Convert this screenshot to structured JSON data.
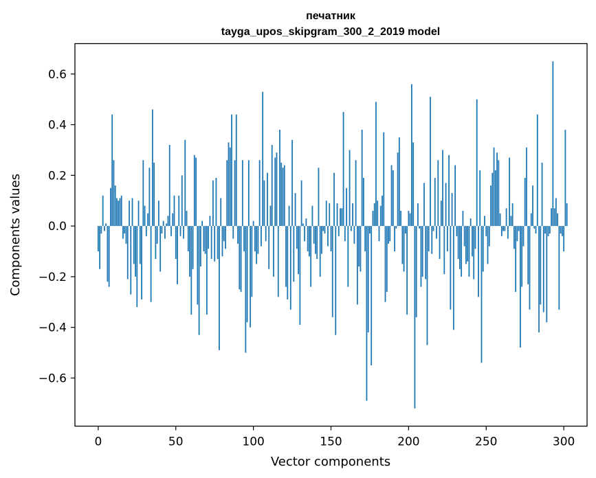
{
  "chart_data": {
    "type": "bar",
    "title": "печатник",
    "subtitle": "tayga_upos_skipgram_300_2_2019 model",
    "xlabel": "Vector components",
    "ylabel": "Components values",
    "xlim": [
      -15,
      315
    ],
    "ylim": [
      -0.79,
      0.72
    ],
    "xticks": [
      0,
      50,
      100,
      150,
      200,
      250,
      300
    ],
    "xtick_labels": [
      "0",
      "50",
      "100",
      "150",
      "200",
      "250",
      "300"
    ],
    "yticks": [
      -0.6,
      -0.4,
      -0.2,
      0.0,
      0.2,
      0.4,
      0.6
    ],
    "ytick_labels": [
      "−0.6",
      "−0.4",
      "−0.2",
      "0.0",
      "0.2",
      "0.4",
      "0.6"
    ],
    "grid": false,
    "bar_color": "#1f77b4",
    "values": [
      -0.1,
      -0.17,
      -0.03,
      0.12,
      -0.02,
      0.01,
      -0.22,
      -0.24,
      0.15,
      0.44,
      0.26,
      0.16,
      0.11,
      0.1,
      0.11,
      0.12,
      -0.05,
      -0.03,
      -0.07,
      -0.21,
      0.1,
      -0.27,
      0.11,
      -0.15,
      -0.2,
      -0.32,
      0.1,
      -0.15,
      -0.29,
      0.26,
      0.08,
      -0.04,
      0.05,
      0.23,
      -0.3,
      0.46,
      0.25,
      -0.13,
      -0.07,
      0.1,
      -0.18,
      -0.03,
      0.02,
      -0.05,
      0.01,
      0.04,
      0.32,
      -0.04,
      0.05,
      0.12,
      -0.13,
      -0.23,
      0.12,
      -0.04,
      0.2,
      -0.05,
      0.34,
      0.06,
      -0.1,
      -0.2,
      -0.35,
      -0.17,
      0.28,
      0.27,
      -0.31,
      -0.43,
      -0.16,
      0.02,
      -0.1,
      -0.11,
      -0.35,
      -0.09,
      0.04,
      -0.13,
      0.18,
      -0.14,
      0.19,
      -0.13,
      -0.49,
      0.11,
      -0.12,
      -0.06,
      -0.09,
      0.26,
      0.33,
      0.31,
      0.44,
      -0.05,
      0.26,
      0.44,
      -0.07,
      -0.25,
      -0.26,
      0.26,
      -0.1,
      -0.5,
      -0.38,
      0.26,
      -0.4,
      -0.28,
      0.02,
      -0.1,
      -0.15,
      -0.11,
      0.26,
      -0.08,
      0.53,
      0.18,
      -0.06,
      0.21,
      -0.17,
      0.08,
      0.32,
      -0.2,
      0.27,
      0.29,
      -0.28,
      0.38,
      0.25,
      0.23,
      0.24,
      -0.24,
      -0.29,
      0.08,
      -0.33,
      0.34,
      -0.22,
      0.13,
      -0.09,
      -0.19,
      -0.39,
      0.18,
      0.01,
      -0.06,
      0.03,
      -0.1,
      -0.12,
      -0.24,
      0.08,
      -0.07,
      -0.11,
      -0.13,
      0.23,
      -0.2,
      -0.11,
      -0.02,
      -0.03,
      0.1,
      -0.08,
      0.09,
      -0.1,
      -0.36,
      0.21,
      -0.43,
      0.09,
      -0.04,
      0.07,
      0.07,
      0.45,
      -0.06,
      0.15,
      -0.24,
      0.3,
      -0.02,
      0.09,
      -0.07,
      0.26,
      -0.31,
      -0.16,
      -0.18,
      0.38,
      0.19,
      -0.1,
      -0.69,
      -0.42,
      -0.03,
      -0.55,
      0.06,
      0.09,
      0.49,
      0.1,
      -0.06,
      0.08,
      0.12,
      0.37,
      -0.3,
      -0.26,
      -0.07,
      -0.06,
      0.24,
      0.22,
      -0.1,
      -0.01,
      0.29,
      0.35,
      0.06,
      -0.15,
      -0.18,
      -0.03,
      -0.35,
      0.06,
      0.05,
      0.56,
      0.33,
      -0.72,
      -0.36,
      0.09,
      -0.01,
      -0.24,
      -0.2,
      0.17,
      -0.21,
      -0.47,
      -0.1,
      0.51,
      -0.11,
      -0.02,
      0.19,
      -0.05,
      0.26,
      -0.13,
      0.1,
      0.3,
      -0.19,
      0.17,
      -0.1,
      0.28,
      -0.33,
      0.13,
      -0.41,
      0.24,
      -0.04,
      -0.13,
      -0.17,
      -0.2,
      0.06,
      -0.08,
      -0.15,
      -0.14,
      -0.2,
      0.03,
      -0.12,
      -0.21,
      -0.09,
      0.5,
      -0.28,
      0.22,
      -0.54,
      -0.18,
      0.04,
      -0.04,
      -0.15,
      -0.08,
      0.16,
      0.21,
      0.31,
      0.22,
      0.29,
      0.26,
      0.05,
      -0.04,
      -0.02,
      -0.02,
      0.07,
      -0.05,
      0.27,
      0.04,
      0.09,
      -0.09,
      -0.26,
      -0.06,
      -0.02,
      -0.48,
      -0.24,
      -0.08,
      0.19,
      0.31,
      -0.23,
      -0.33,
      0.05,
      0.16,
      -0.01,
      -0.03,
      0.44,
      -0.42,
      -0.31,
      0.25,
      -0.34,
      -0.03,
      -0.38,
      -0.04,
      -0.03,
      0.07,
      0.65,
      0.07,
      0.11,
      0.05,
      -0.33,
      -0.03,
      -0.04,
      -0.1,
      0.38,
      0.09
    ]
  }
}
